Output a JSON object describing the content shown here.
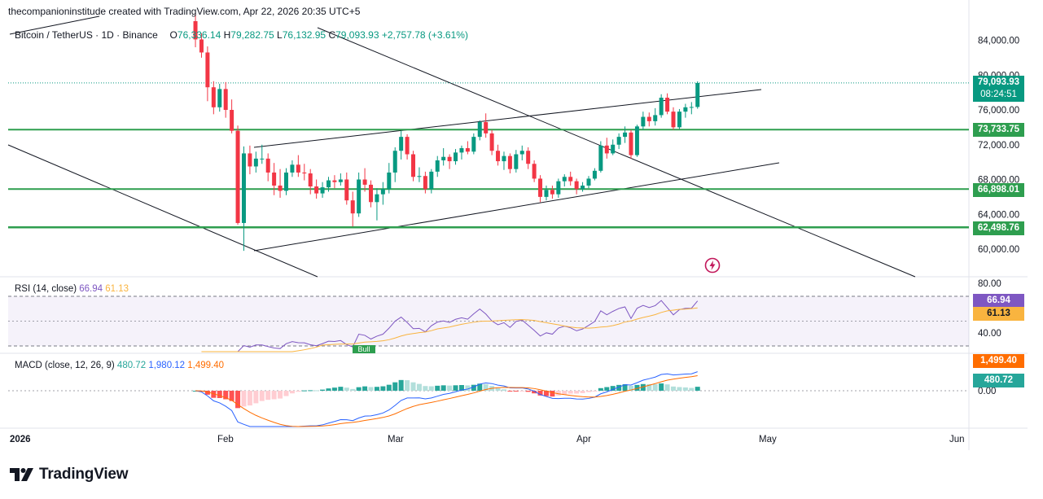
{
  "header": {
    "attribution": "thecompanioninstitude created with TradingView.com, Apr 22, 2026 20:35 UTC+5"
  },
  "symbol": {
    "name": "Bitcoin / TetherUS · 1D · Binance",
    "open_label": "O",
    "open": "76,336.14",
    "high_label": "H",
    "high": "79,282.75",
    "low_label": "L",
    "low": "76,132.95",
    "close_label": "C",
    "close": "79,093.93",
    "change": "+2,757.78 (+3.61%)"
  },
  "price_tags": {
    "last_price": "79,093.93",
    "countdown": "08:24:51",
    "level_1": "73,733.75",
    "level_2": "66,898.01",
    "level_3": "62,498.76"
  },
  "rsi": {
    "title": "RSI (14, close)",
    "value": "66.94",
    "ma": "61.13",
    "bull_label": "Bull"
  },
  "macd": {
    "title": "MACD (close, 12, 26, 9)",
    "histogram": "480.72",
    "macd": "1,980.12",
    "signal": "1,499.40"
  },
  "colors": {
    "up": "#089981",
    "down": "#f23645",
    "level": "#2e9e4f",
    "rsi": "#7e57c2",
    "rsi_ma": "#f9b43f",
    "macd": "#2962ff",
    "signal": "#ff6d00"
  },
  "brand": {
    "name": "TradingView"
  },
  "icons": [
    "tradingview-logo-icon",
    "flash-icon"
  ],
  "chart_data": {
    "type": "candlestick",
    "price_axis_ticks": [
      "84,000.00",
      "80,000.00",
      "76,000.00",
      "72,000.00",
      "68,000.00",
      "64,000.00",
      "60,000.00"
    ],
    "price_axis_values": [
      84000,
      80000,
      76000,
      72000,
      68000,
      64000,
      60000
    ],
    "ylim": [
      57000,
      86500
    ],
    "rsi_axis_ticks": [
      "80.00",
      "40.00"
    ],
    "rsi_axis_values": [
      80,
      40
    ],
    "macd_axis_ticks": [
      "0.00"
    ],
    "time_axis_ticks": [
      "2026",
      "Feb",
      "Mar",
      "Apr",
      "May",
      "Jun"
    ],
    "horizontal_levels": [
      73733.75,
      66898.01,
      62498.76
    ],
    "candles": [
      {
        "d": "2026-01-29",
        "o": 86200,
        "h": 87100,
        "l": 83200,
        "c": 84100
      },
      {
        "d": "2026-01-30",
        "o": 84100,
        "h": 84800,
        "l": 82000,
        "c": 82600
      },
      {
        "d": "2026-01-31",
        "o": 82600,
        "h": 83300,
        "l": 77000,
        "c": 78600
      },
      {
        "d": "2026-02-01",
        "o": 78600,
        "h": 79300,
        "l": 75500,
        "c": 76300
      },
      {
        "d": "2026-02-02",
        "o": 76300,
        "h": 79000,
        "l": 75800,
        "c": 78400
      },
      {
        "d": "2026-02-03",
        "o": 78400,
        "h": 79200,
        "l": 75100,
        "c": 76000
      },
      {
        "d": "2026-02-04",
        "o": 76000,
        "h": 77200,
        "l": 73300,
        "c": 73600
      },
      {
        "d": "2026-02-05",
        "o": 73600,
        "h": 74200,
        "l": 62800,
        "c": 63000
      },
      {
        "d": "2026-02-06",
        "o": 63000,
        "h": 71800,
        "l": 59800,
        "c": 71000
      },
      {
        "d": "2026-02-07",
        "o": 71000,
        "h": 71900,
        "l": 68600,
        "c": 69500
      },
      {
        "d": "2026-02-08",
        "o": 69500,
        "h": 71200,
        "l": 68800,
        "c": 70400
      },
      {
        "d": "2026-02-09",
        "o": 70400,
        "h": 72000,
        "l": 69800,
        "c": 70400
      },
      {
        "d": "2026-02-10",
        "o": 70400,
        "h": 71000,
        "l": 67800,
        "c": 68800
      },
      {
        "d": "2026-02-11",
        "o": 68800,
        "h": 69900,
        "l": 66200,
        "c": 67300
      },
      {
        "d": "2026-02-12",
        "o": 67300,
        "h": 69200,
        "l": 65900,
        "c": 66700
      },
      {
        "d": "2026-02-13",
        "o": 66700,
        "h": 69300,
        "l": 66200,
        "c": 68800
      },
      {
        "d": "2026-02-14",
        "o": 68800,
        "h": 70200,
        "l": 68300,
        "c": 69700
      },
      {
        "d": "2026-02-15",
        "o": 69700,
        "h": 70800,
        "l": 68300,
        "c": 68800
      },
      {
        "d": "2026-02-16",
        "o": 68800,
        "h": 69800,
        "l": 67900,
        "c": 68700
      },
      {
        "d": "2026-02-17",
        "o": 68700,
        "h": 69200,
        "l": 66300,
        "c": 67200
      },
      {
        "d": "2026-02-18",
        "o": 67200,
        "h": 68000,
        "l": 65800,
        "c": 66400
      },
      {
        "d": "2026-02-19",
        "o": 66400,
        "h": 67700,
        "l": 65900,
        "c": 67100
      },
      {
        "d": "2026-02-20",
        "o": 67100,
        "h": 68300,
        "l": 66600,
        "c": 67900
      },
      {
        "d": "2026-02-21",
        "o": 67900,
        "h": 68500,
        "l": 67000,
        "c": 67700
      },
      {
        "d": "2026-02-22",
        "o": 67700,
        "h": 68700,
        "l": 67300,
        "c": 68000
      },
      {
        "d": "2026-02-23",
        "o": 68000,
        "h": 68800,
        "l": 65100,
        "c": 65600
      },
      {
        "d": "2026-02-24",
        "o": 65600,
        "h": 66600,
        "l": 62600,
        "c": 64100
      },
      {
        "d": "2026-02-25",
        "o": 64100,
        "h": 68800,
        "l": 63700,
        "c": 68000
      },
      {
        "d": "2026-02-26",
        "o": 68000,
        "h": 69300,
        "l": 66600,
        "c": 67400
      },
      {
        "d": "2026-02-27",
        "o": 67400,
        "h": 67900,
        "l": 64800,
        "c": 65400
      },
      {
        "d": "2026-02-28",
        "o": 65400,
        "h": 67000,
        "l": 63300,
        "c": 66300
      },
      {
        "d": "2026-03-01",
        "o": 66300,
        "h": 67700,
        "l": 65100,
        "c": 66900
      },
      {
        "d": "2026-03-02",
        "o": 66900,
        "h": 69900,
        "l": 66400,
        "c": 68800
      },
      {
        "d": "2026-03-03",
        "o": 68800,
        "h": 71700,
        "l": 67700,
        "c": 71300
      },
      {
        "d": "2026-03-04",
        "o": 71300,
        "h": 73600,
        "l": 70300,
        "c": 72900
      },
      {
        "d": "2026-03-05",
        "o": 72900,
        "h": 73200,
        "l": 70300,
        "c": 70900
      },
      {
        "d": "2026-03-06",
        "o": 70900,
        "h": 71300,
        "l": 67800,
        "c": 68300
      },
      {
        "d": "2026-03-07",
        "o": 68300,
        "h": 69400,
        "l": 67700,
        "c": 68400
      },
      {
        "d": "2026-03-08",
        "o": 68400,
        "h": 68900,
        "l": 66400,
        "c": 66900
      },
      {
        "d": "2026-03-09",
        "o": 66900,
        "h": 69200,
        "l": 66400,
        "c": 68900
      },
      {
        "d": "2026-03-10",
        "o": 68900,
        "h": 70700,
        "l": 68300,
        "c": 70200
      },
      {
        "d": "2026-03-11",
        "o": 70200,
        "h": 71600,
        "l": 69600,
        "c": 70600
      },
      {
        "d": "2026-03-12",
        "o": 70600,
        "h": 70900,
        "l": 69200,
        "c": 70100
      },
      {
        "d": "2026-03-13",
        "o": 70100,
        "h": 71500,
        "l": 69700,
        "c": 71100
      },
      {
        "d": "2026-03-14",
        "o": 71100,
        "h": 71900,
        "l": 70300,
        "c": 71600
      },
      {
        "d": "2026-03-15",
        "o": 71600,
        "h": 72400,
        "l": 70900,
        "c": 71200
      },
      {
        "d": "2026-03-16",
        "o": 71200,
        "h": 73300,
        "l": 70900,
        "c": 72900
      },
      {
        "d": "2026-03-17",
        "o": 72900,
        "h": 74800,
        "l": 72500,
        "c": 74600
      },
      {
        "d": "2026-03-18",
        "o": 74600,
        "h": 75600,
        "l": 72800,
        "c": 73300
      },
      {
        "d": "2026-03-19",
        "o": 73300,
        "h": 73700,
        "l": 70800,
        "c": 71300
      },
      {
        "d": "2026-03-20",
        "o": 71300,
        "h": 72000,
        "l": 69600,
        "c": 70100
      },
      {
        "d": "2026-03-21",
        "o": 70100,
        "h": 71200,
        "l": 69100,
        "c": 70700
      },
      {
        "d": "2026-03-22",
        "o": 70700,
        "h": 71000,
        "l": 68700,
        "c": 69200
      },
      {
        "d": "2026-03-23",
        "o": 69200,
        "h": 71400,
        "l": 68800,
        "c": 70900
      },
      {
        "d": "2026-03-24",
        "o": 70900,
        "h": 71900,
        "l": 70200,
        "c": 71300
      },
      {
        "d": "2026-03-25",
        "o": 71300,
        "h": 71700,
        "l": 69200,
        "c": 69800
      },
      {
        "d": "2026-03-26",
        "o": 69800,
        "h": 70200,
        "l": 67700,
        "c": 68100
      },
      {
        "d": "2026-03-27",
        "o": 68100,
        "h": 68500,
        "l": 65400,
        "c": 66000
      },
      {
        "d": "2026-03-28",
        "o": 66000,
        "h": 67300,
        "l": 65600,
        "c": 66800
      },
      {
        "d": "2026-03-29",
        "o": 66800,
        "h": 67300,
        "l": 65800,
        "c": 66300
      },
      {
        "d": "2026-03-30",
        "o": 66300,
        "h": 68100,
        "l": 65900,
        "c": 67800
      },
      {
        "d": "2026-03-31",
        "o": 67800,
        "h": 68600,
        "l": 67200,
        "c": 68300
      },
      {
        "d": "2026-04-01",
        "o": 68300,
        "h": 68900,
        "l": 67300,
        "c": 67800
      },
      {
        "d": "2026-04-02",
        "o": 67800,
        "h": 68100,
        "l": 66300,
        "c": 66900
      },
      {
        "d": "2026-04-03",
        "o": 66900,
        "h": 67700,
        "l": 66600,
        "c": 67300
      },
      {
        "d": "2026-04-04",
        "o": 67300,
        "h": 68400,
        "l": 67000,
        "c": 68100
      },
      {
        "d": "2026-04-05",
        "o": 68100,
        "h": 69300,
        "l": 67900,
        "c": 69000
      },
      {
        "d": "2026-04-06",
        "o": 69000,
        "h": 72400,
        "l": 68800,
        "c": 71900
      },
      {
        "d": "2026-04-07",
        "o": 71900,
        "h": 72800,
        "l": 70400,
        "c": 71000
      },
      {
        "d": "2026-04-08",
        "o": 71000,
        "h": 72600,
        "l": 70800,
        "c": 72000
      },
      {
        "d": "2026-04-09",
        "o": 72000,
        "h": 73300,
        "l": 71500,
        "c": 72900
      },
      {
        "d": "2026-04-10",
        "o": 72900,
        "h": 74100,
        "l": 72200,
        "c": 73400
      },
      {
        "d": "2026-04-11",
        "o": 73400,
        "h": 73700,
        "l": 70400,
        "c": 70800
      },
      {
        "d": "2026-04-12",
        "o": 70800,
        "h": 74300,
        "l": 70600,
        "c": 74100
      },
      {
        "d": "2026-04-13",
        "o": 74100,
        "h": 75800,
        "l": 73700,
        "c": 75200
      },
      {
        "d": "2026-04-14",
        "o": 75200,
        "h": 75700,
        "l": 74100,
        "c": 74700
      },
      {
        "d": "2026-04-15",
        "o": 74700,
        "h": 76200,
        "l": 74200,
        "c": 75400
      },
      {
        "d": "2026-04-16",
        "o": 75400,
        "h": 77800,
        "l": 75100,
        "c": 77400
      },
      {
        "d": "2026-04-17",
        "o": 77400,
        "h": 77900,
        "l": 75500,
        "c": 75800
      },
      {
        "d": "2026-04-18",
        "o": 75800,
        "h": 76300,
        "l": 73700,
        "c": 74000
      },
      {
        "d": "2026-04-19",
        "o": 74000,
        "h": 76100,
        "l": 73800,
        "c": 75800
      },
      {
        "d": "2026-04-20",
        "o": 75800,
        "h": 76700,
        "l": 75100,
        "c": 76300
      },
      {
        "d": "2026-04-21",
        "o": 76300,
        "h": 76900,
        "l": 75500,
        "c": 76336
      },
      {
        "d": "2026-04-22",
        "o": 76336,
        "h": 79283,
        "l": 76133,
        "c": 79094
      }
    ]
  }
}
